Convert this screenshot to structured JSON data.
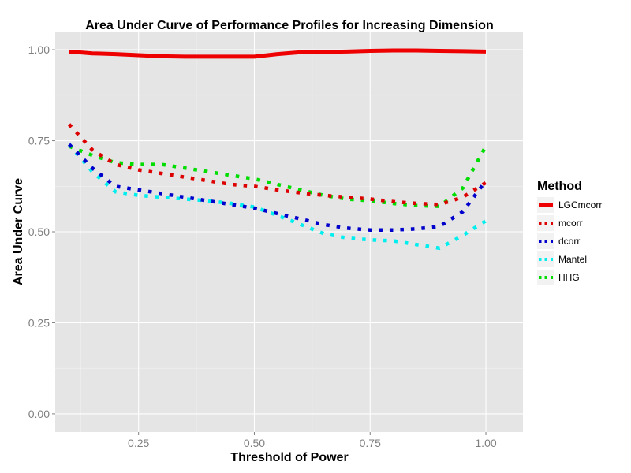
{
  "chart_data": {
    "type": "line",
    "title": "Area Under Curve of Performance Profiles for Increasing Dimension",
    "xlabel": "Threshold of Power",
    "ylabel": "Area Under Curve",
    "xlim": [
      0.07,
      1.08
    ],
    "ylim": [
      -0.05,
      1.05
    ],
    "xticks": [
      0.25,
      0.5,
      0.75,
      1.0
    ],
    "xtick_labels": [
      "0.25",
      "0.50",
      "0.75",
      "1.00"
    ],
    "yticks": [
      0.0,
      0.25,
      0.5,
      0.75,
      1.0
    ],
    "ytick_labels": [
      "0.00",
      "0.25",
      "0.50",
      "0.75",
      "1.00"
    ],
    "grid": true,
    "legend": {
      "title": "Method",
      "position": "right"
    },
    "x": [
      0.1,
      0.15,
      0.2,
      0.25,
      0.3,
      0.35,
      0.4,
      0.45,
      0.5,
      0.55,
      0.6,
      0.65,
      0.7,
      0.75,
      0.8,
      0.85,
      0.9,
      0.95,
      1.0
    ],
    "series": [
      {
        "name": "LGCmcorr",
        "color": "#ee0000",
        "style": "solid",
        "values": [
          0.995,
          0.99,
          0.988,
          0.985,
          0.982,
          0.981,
          0.981,
          0.981,
          0.981,
          0.988,
          0.993,
          0.994,
          0.995,
          0.997,
          0.998,
          0.998,
          0.997,
          0.996,
          0.995
        ]
      },
      {
        "name": "mcorr",
        "color": "#dd0000",
        "style": "dotted",
        "values": [
          0.795,
          0.725,
          0.685,
          0.67,
          0.66,
          0.65,
          0.64,
          0.63,
          0.625,
          0.615,
          0.607,
          0.6,
          0.595,
          0.59,
          0.583,
          0.578,
          0.575,
          0.595,
          0.635
        ]
      },
      {
        "name": "dcorr",
        "color": "#0000cc",
        "style": "dotted",
        "values": [
          0.74,
          0.675,
          0.625,
          0.615,
          0.605,
          0.595,
          0.585,
          0.575,
          0.565,
          0.55,
          0.535,
          0.52,
          0.51,
          0.505,
          0.505,
          0.508,
          0.515,
          0.555,
          0.64
        ]
      },
      {
        "name": "Mantel",
        "color": "#00eeee",
        "style": "dotted",
        "values": [
          0.74,
          0.665,
          0.61,
          0.6,
          0.595,
          0.59,
          0.585,
          0.578,
          0.568,
          0.545,
          0.52,
          0.495,
          0.483,
          0.478,
          0.475,
          0.465,
          0.455,
          0.49,
          0.53
        ]
      },
      {
        "name": "HHG",
        "color": "#00dd00",
        "style": "dotted",
        "values": [
          0.735,
          0.71,
          0.69,
          0.685,
          0.685,
          0.675,
          0.665,
          0.655,
          0.645,
          0.63,
          0.615,
          0.6,
          0.59,
          0.585,
          0.578,
          0.572,
          0.57,
          0.62,
          0.735
        ]
      }
    ]
  }
}
